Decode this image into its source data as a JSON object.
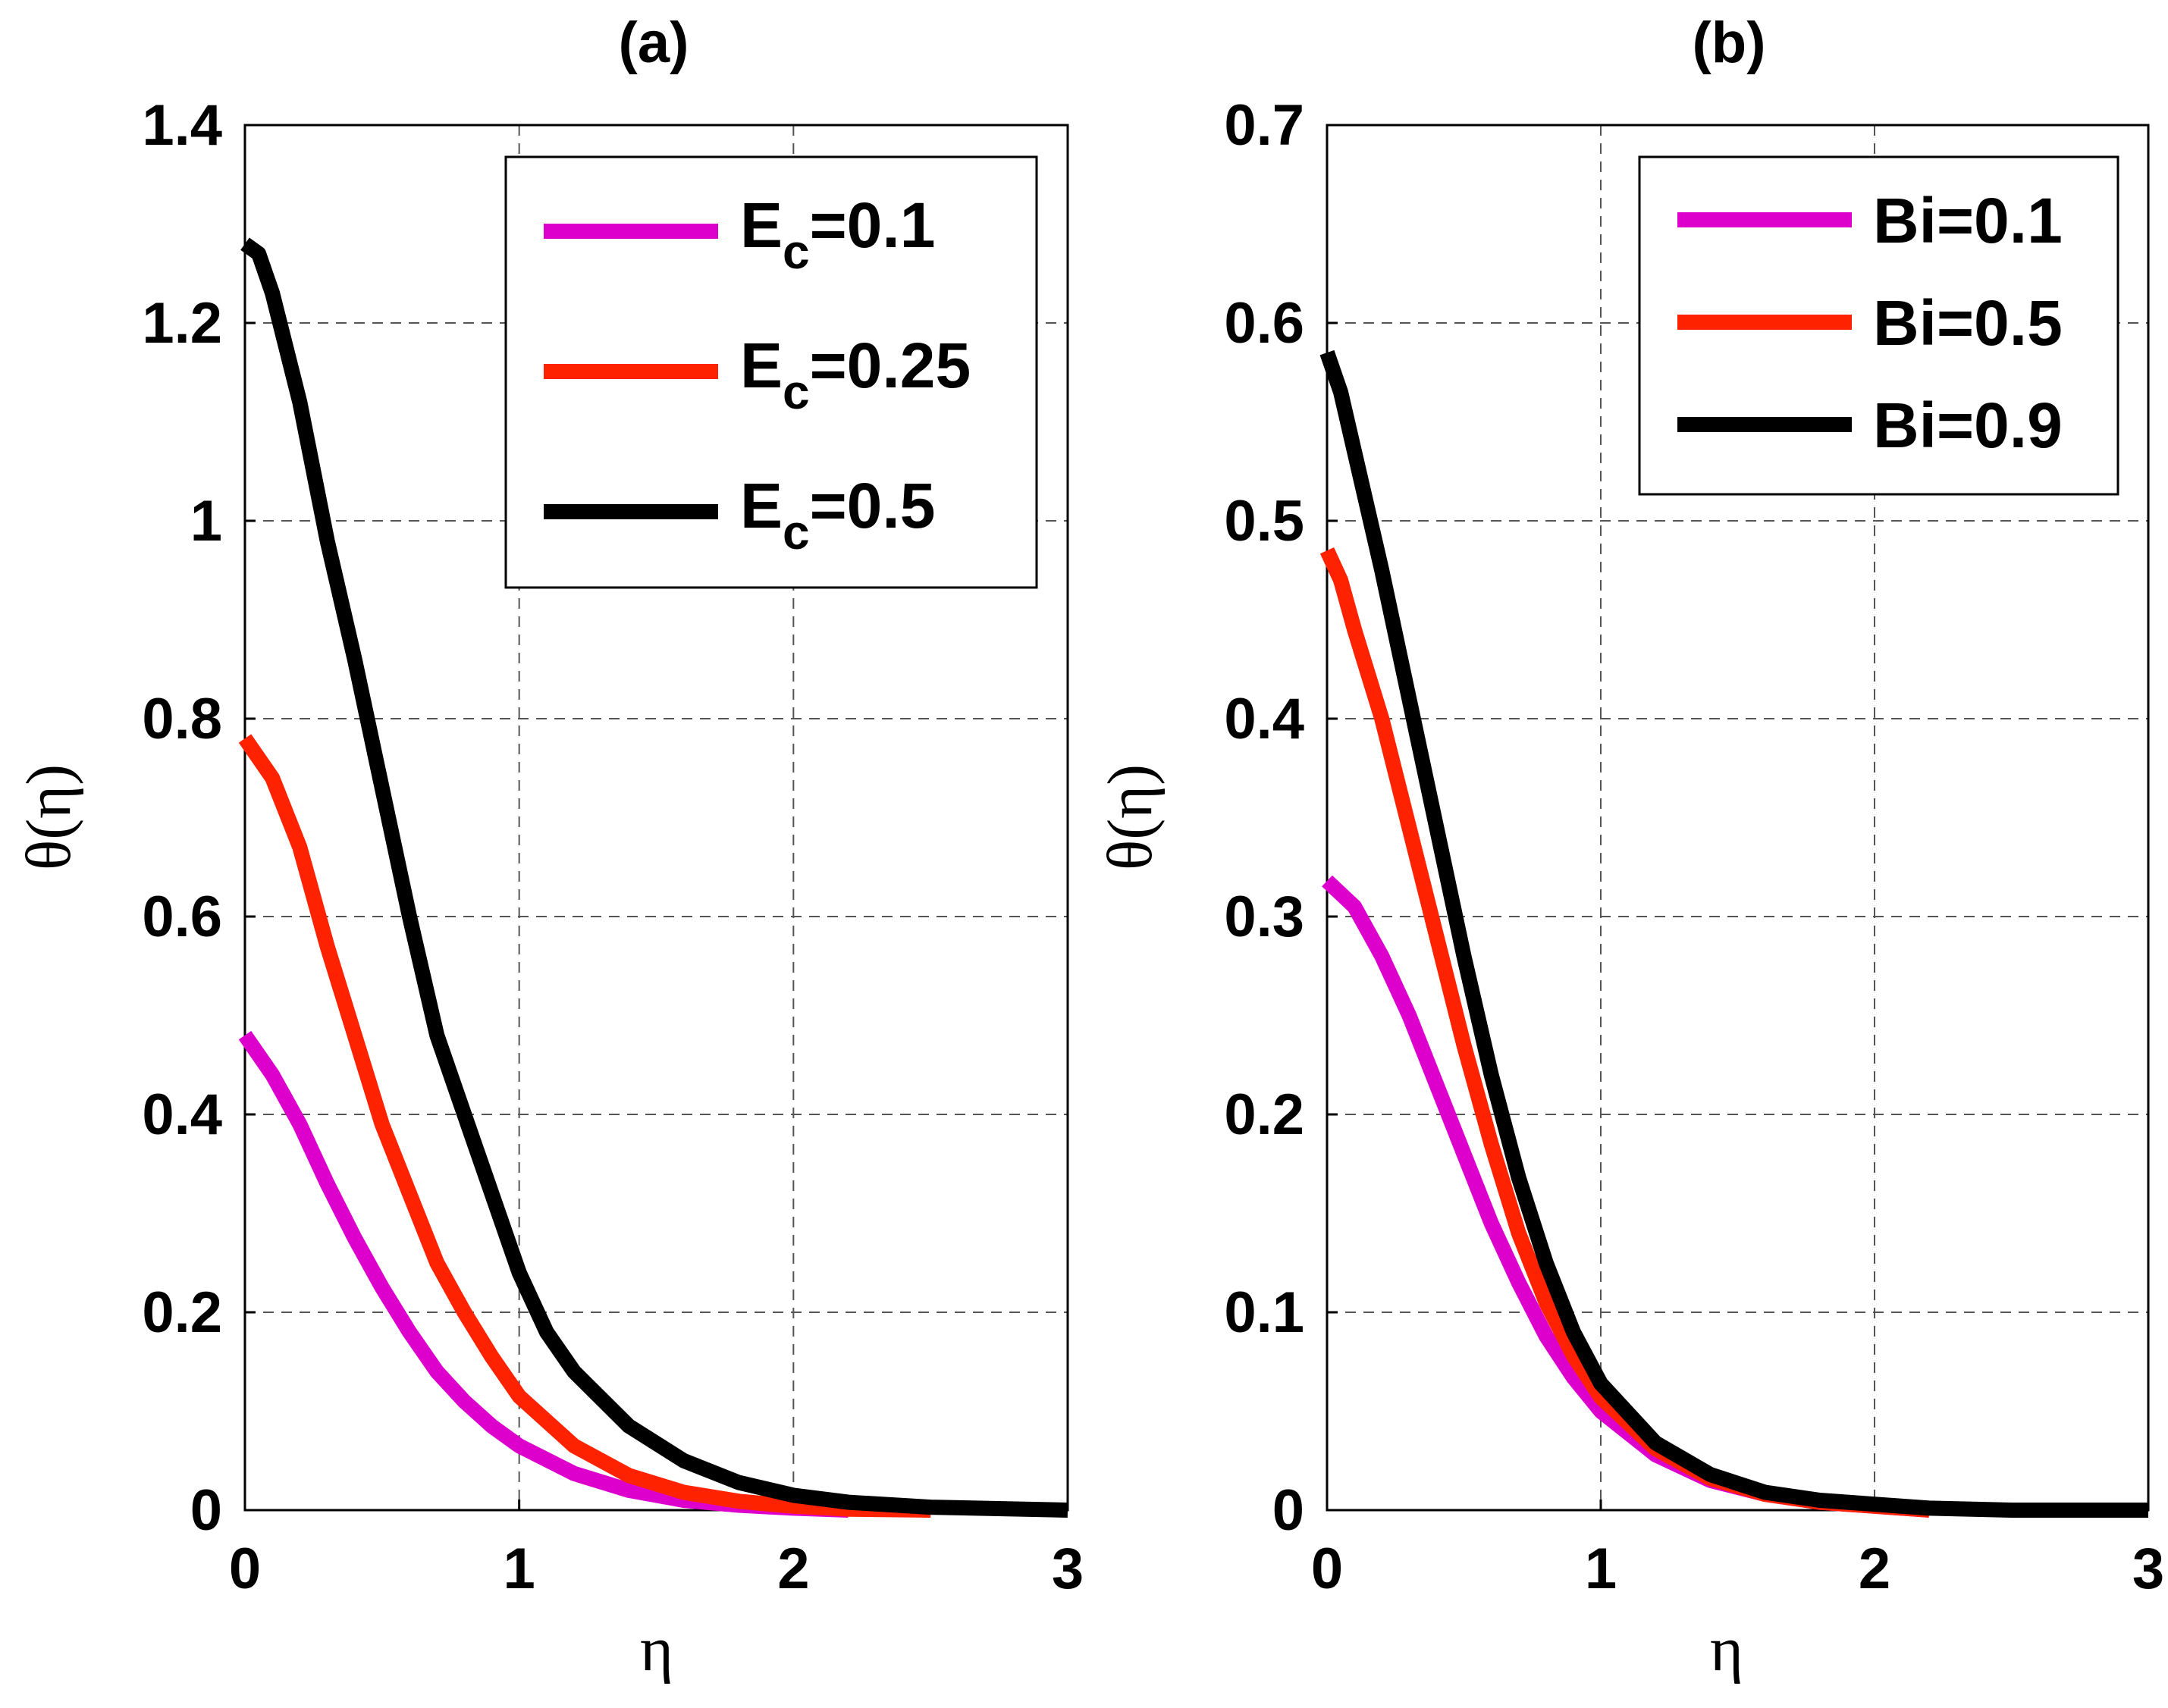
{
  "chart_data": [
    {
      "type": "line",
      "title": "(a)",
      "xlabel": "η",
      "ylabel": "θ(η)",
      "xlim": [
        0,
        3
      ],
      "ylim": [
        0,
        1.4
      ],
      "xticks": [
        0,
        1,
        2,
        3
      ],
      "xtick_labels": [
        "0",
        "1",
        "2",
        "3"
      ],
      "yticks": [
        0,
        0.2,
        0.4,
        0.6,
        0.8,
        1.0,
        1.2,
        1.4
      ],
      "ytick_labels": [
        "0",
        "0.2",
        "0.4",
        "0.6",
        "0.8",
        "1",
        "1.2",
        "1.4"
      ],
      "grid": true,
      "legend_position": "top-right",
      "series": [
        {
          "name": "Ec=0.1",
          "legend_main": "E",
          "legend_sub": "c",
          "legend_value": "=0.1",
          "color": "#dd00cc",
          "x": [
            0,
            0.1,
            0.2,
            0.3,
            0.4,
            0.5,
            0.6,
            0.7,
            0.8,
            0.9,
            1.0,
            1.2,
            1.4,
            1.6,
            1.8,
            2.0,
            2.2
          ],
          "y": [
            0.48,
            0.44,
            0.39,
            0.33,
            0.275,
            0.225,
            0.18,
            0.14,
            0.11,
            0.085,
            0.065,
            0.037,
            0.02,
            0.01,
            0.005,
            0.002,
            0.0
          ]
        },
        {
          "name": "Ec=0.25",
          "legend_main": "E",
          "legend_sub": "c",
          "legend_value": "=0.25",
          "color": "#ff2200",
          "x": [
            0,
            0.1,
            0.2,
            0.3,
            0.4,
            0.5,
            0.6,
            0.7,
            0.8,
            0.9,
            1.0,
            1.2,
            1.4,
            1.6,
            1.8,
            2.0,
            2.2,
            2.5
          ],
          "y": [
            0.78,
            0.74,
            0.67,
            0.57,
            0.48,
            0.39,
            0.32,
            0.25,
            0.2,
            0.155,
            0.115,
            0.065,
            0.035,
            0.018,
            0.009,
            0.004,
            0.001,
            0.0
          ]
        },
        {
          "name": "Ec=0.5",
          "legend_main": "E",
          "legend_sub": "c",
          "legend_value": "=0.5",
          "color": "#000000",
          "x": [
            0,
            0.05,
            0.1,
            0.2,
            0.3,
            0.4,
            0.5,
            0.6,
            0.7,
            0.8,
            0.9,
            1.0,
            1.1,
            1.2,
            1.4,
            1.6,
            1.8,
            2.0,
            2.2,
            2.5,
            3.0
          ],
          "y": [
            1.28,
            1.27,
            1.23,
            1.12,
            0.98,
            0.86,
            0.73,
            0.6,
            0.48,
            0.4,
            0.32,
            0.24,
            0.18,
            0.14,
            0.085,
            0.05,
            0.028,
            0.015,
            0.008,
            0.003,
            0.0
          ]
        }
      ]
    },
    {
      "type": "line",
      "title": "(b)",
      "xlabel": "η",
      "ylabel": "θ(η)",
      "xlim": [
        0,
        3
      ],
      "ylim": [
        0,
        0.7
      ],
      "xticks": [
        0,
        1,
        2,
        3
      ],
      "xtick_labels": [
        "0",
        "1",
        "2",
        "3"
      ],
      "yticks": [
        0,
        0.1,
        0.2,
        0.3,
        0.4,
        0.5,
        0.6,
        0.7
      ],
      "ytick_labels": [
        "0",
        "0.1",
        "0.2",
        "0.3",
        "0.4",
        "0.5",
        "0.6",
        "0.7"
      ],
      "grid": true,
      "legend_position": "top-right",
      "series": [
        {
          "name": "Bi=0.1",
          "legend_text": "Bi=0.1",
          "color": "#dd00cc",
          "x": [
            0,
            0.1,
            0.2,
            0.3,
            0.4,
            0.5,
            0.6,
            0.7,
            0.8,
            0.9,
            1.0,
            1.2,
            1.4,
            1.6,
            1.8,
            2.0,
            2.2
          ],
          "y": [
            0.318,
            0.305,
            0.28,
            0.25,
            0.215,
            0.18,
            0.145,
            0.115,
            0.088,
            0.067,
            0.05,
            0.028,
            0.015,
            0.008,
            0.004,
            0.002,
            0.0
          ]
        },
        {
          "name": "Bi=0.5",
          "legend_text": "Bi=0.5",
          "color": "#ff2200",
          "x": [
            0,
            0.05,
            0.1,
            0.2,
            0.3,
            0.4,
            0.5,
            0.6,
            0.7,
            0.8,
            0.9,
            1.0,
            1.2,
            1.4,
            1.6,
            1.8,
            2.0,
            2.2
          ],
          "y": [
            0.485,
            0.47,
            0.445,
            0.4,
            0.345,
            0.29,
            0.235,
            0.185,
            0.14,
            0.105,
            0.078,
            0.057,
            0.031,
            0.016,
            0.008,
            0.004,
            0.002,
            0.0
          ]
        },
        {
          "name": "Bi=0.9",
          "legend_text": "Bi=0.9",
          "color": "#000000",
          "x": [
            0,
            0.05,
            0.1,
            0.2,
            0.3,
            0.4,
            0.5,
            0.6,
            0.7,
            0.8,
            0.9,
            1.0,
            1.2,
            1.4,
            1.6,
            1.8,
            2.0,
            2.2,
            2.5,
            3.0
          ],
          "y": [
            0.585,
            0.565,
            0.535,
            0.475,
            0.41,
            0.345,
            0.28,
            0.22,
            0.168,
            0.125,
            0.09,
            0.064,
            0.034,
            0.018,
            0.009,
            0.005,
            0.003,
            0.001,
            0.0,
            0.0
          ]
        }
      ]
    }
  ]
}
